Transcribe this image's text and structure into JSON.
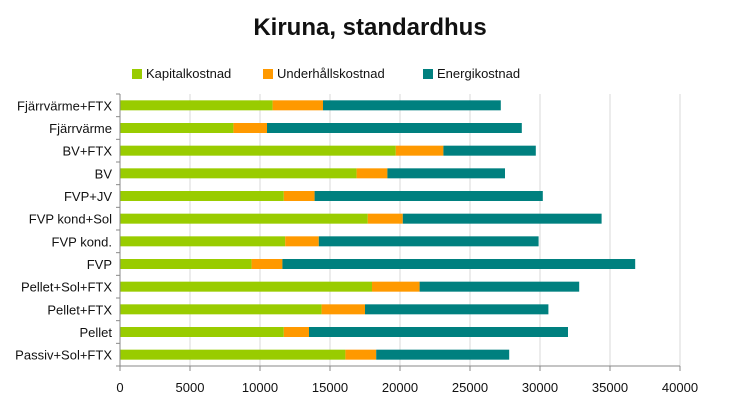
{
  "chart_data": {
    "type": "bar",
    "orientation": "horizontal",
    "stacked": true,
    "title": "Kiruna, standardhus",
    "xlabel": "",
    "ylabel": "",
    "xlim": [
      0,
      40000
    ],
    "xticks": [
      0,
      5000,
      10000,
      15000,
      20000,
      25000,
      30000,
      35000,
      40000
    ],
    "grid": "vertical",
    "legend_position": "top",
    "categories": [
      "Fjärrvärme+FTX",
      "Fjärrvärme",
      "BV+FTX",
      "BV",
      "FVP+JV",
      "FVP kond+Sol",
      "FVP kond.",
      "FVP",
      "Pellet+Sol+FTX",
      "Pellet+FTX",
      "Pellet",
      "Passiv+Sol+FTX"
    ],
    "series": [
      {
        "name": "Kapitalkostnad",
        "color": "#99cc00",
        "values": [
          10900,
          8100,
          19700,
          16900,
          11700,
          17700,
          11800,
          9400,
          18000,
          14400,
          11700,
          16100
        ]
      },
      {
        "name": "Underhållskostnad",
        "color": "#ff9900",
        "values": [
          3600,
          2400,
          3400,
          2200,
          2200,
          2500,
          2400,
          2200,
          3400,
          3100,
          1800,
          2200
        ]
      },
      {
        "name": "Energikostnad",
        "color": "#00807f",
        "values": [
          12700,
          18200,
          6600,
          8400,
          16300,
          14200,
          15700,
          25200,
          11400,
          13100,
          18500,
          9500
        ]
      }
    ]
  }
}
